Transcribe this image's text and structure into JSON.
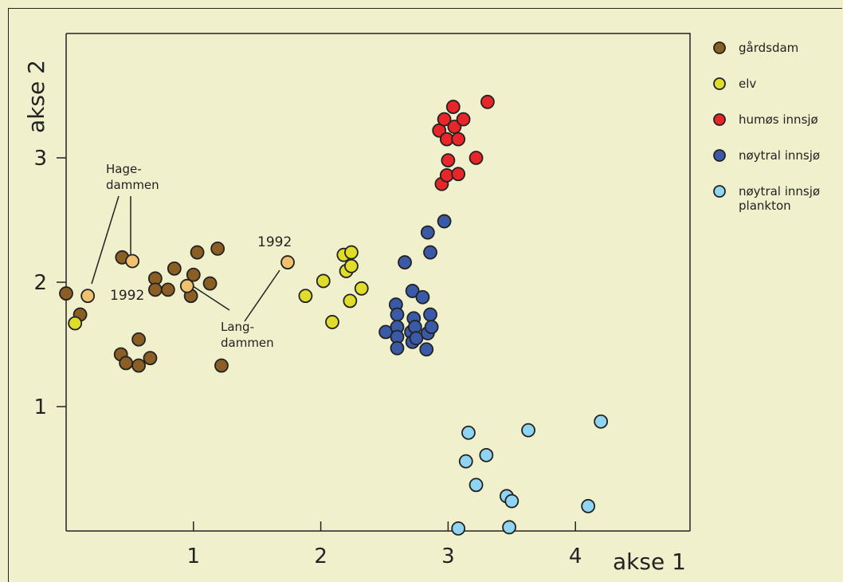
{
  "chart_data": {
    "type": "scatter",
    "xlabel": "akse 1",
    "ylabel": "akse 2",
    "xlim": [
      0,
      4.9
    ],
    "ylim": [
      0,
      4.0
    ],
    "xticks": [
      1,
      2,
      3,
      4
    ],
    "yticks": [
      1,
      2,
      3
    ],
    "grid": false,
    "legend_position": "right",
    "series": [
      {
        "name": "gårdsdam",
        "color": "#8b5e24",
        "points": [
          [
            0.0,
            1.91
          ],
          [
            0.11,
            1.74
          ],
          [
            0.44,
            2.2
          ],
          [
            0.43,
            1.42
          ],
          [
            0.47,
            1.35
          ],
          [
            0.57,
            1.33
          ],
          [
            0.57,
            1.54
          ],
          [
            0.66,
            1.39
          ],
          [
            0.7,
            2.03
          ],
          [
            0.7,
            1.94
          ],
          [
            0.8,
            1.94
          ],
          [
            0.85,
            2.11
          ],
          [
            0.98,
            1.89
          ],
          [
            1.0,
            2.06
          ],
          [
            1.03,
            2.24
          ],
          [
            1.13,
            1.99
          ],
          [
            1.19,
            2.27
          ],
          [
            1.22,
            1.33
          ]
        ]
      },
      {
        "name": "gårdsdam 1992",
        "color": "#f0c270",
        "points": [
          [
            0.17,
            1.89
          ],
          [
            0.52,
            2.17
          ],
          [
            0.95,
            1.97
          ],
          [
            1.74,
            2.16
          ]
        ]
      },
      {
        "name": "elv",
        "color": "#dfdc2a",
        "points": [
          [
            0.07,
            1.67
          ],
          [
            1.88,
            1.89
          ],
          [
            2.02,
            2.01
          ],
          [
            2.09,
            1.68
          ],
          [
            2.18,
            2.22
          ],
          [
            2.2,
            2.09
          ],
          [
            2.24,
            2.24
          ],
          [
            2.24,
            2.13
          ],
          [
            2.23,
            1.85
          ],
          [
            2.32,
            1.95
          ]
        ]
      },
      {
        "name": "humøs innsjø",
        "color": "#e8262a",
        "points": [
          [
            2.93,
            3.22
          ],
          [
            2.95,
            2.79
          ],
          [
            2.97,
            3.31
          ],
          [
            2.99,
            3.15
          ],
          [
            2.99,
            2.86
          ],
          [
            3.0,
            2.98
          ],
          [
            3.04,
            3.41
          ],
          [
            3.05,
            3.25
          ],
          [
            3.08,
            3.15
          ],
          [
            3.08,
            2.87
          ],
          [
            3.12,
            3.31
          ],
          [
            3.22,
            3.0
          ],
          [
            3.31,
            3.45
          ]
        ]
      },
      {
        "name": "nøytral innsjø",
        "color": "#3a5aa8",
        "points": [
          [
            2.51,
            1.6
          ],
          [
            2.59,
            1.82
          ],
          [
            2.6,
            1.74
          ],
          [
            2.6,
            1.64
          ],
          [
            2.6,
            1.56
          ],
          [
            2.6,
            1.47
          ],
          [
            2.66,
            2.16
          ],
          [
            2.72,
            1.93
          ],
          [
            2.71,
            1.6
          ],
          [
            2.72,
            1.52
          ],
          [
            2.73,
            1.71
          ],
          [
            2.74,
            1.64
          ],
          [
            2.75,
            1.55
          ],
          [
            2.8,
            1.88
          ],
          [
            2.83,
            1.46
          ],
          [
            2.84,
            1.59
          ],
          [
            2.84,
            2.4
          ],
          [
            2.86,
            2.24
          ],
          [
            2.86,
            1.74
          ],
          [
            2.87,
            1.64
          ],
          [
            2.97,
            2.49
          ]
        ]
      },
      {
        "name": "nøytral innsjø plankton",
        "color": "#8fd4f2",
        "points": [
          [
            3.08,
            0.02
          ],
          [
            3.14,
            0.56
          ],
          [
            3.16,
            0.79
          ],
          [
            3.22,
            0.37
          ],
          [
            3.3,
            0.61
          ],
          [
            3.46,
            0.28
          ],
          [
            3.48,
            0.03
          ],
          [
            3.5,
            0.24
          ],
          [
            3.63,
            0.81
          ],
          [
            4.1,
            0.2
          ],
          [
            4.2,
            0.88
          ]
        ]
      }
    ],
    "annotations": [
      {
        "text_lines": [
          "Hage-",
          "dammen"
        ]
      },
      {
        "text": "1992"
      },
      {
        "text": "1992"
      },
      {
        "text_lines": [
          "Lang-",
          "dammen"
        ]
      }
    ]
  },
  "legend": {
    "items": [
      {
        "label_lines": [
          "gårdsdam"
        ],
        "color": "#8b5e24"
      },
      {
        "label_lines": [
          "elv"
        ],
        "color": "#dfdc2a"
      },
      {
        "label_lines": [
          "humøs innsjø"
        ],
        "color": "#e8262a"
      },
      {
        "label_lines": [
          "nøytral innsjø"
        ],
        "color": "#3a5aa8"
      },
      {
        "label_lines": [
          "nøytral innsjø",
          "plankton"
        ],
        "color": "#8fd4f2"
      }
    ]
  }
}
